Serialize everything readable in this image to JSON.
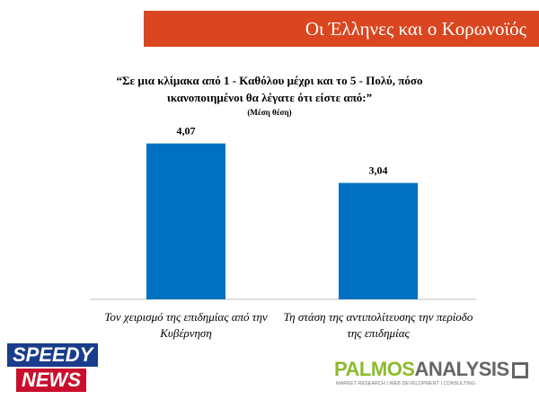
{
  "header": {
    "title": "Οι Έλληνες και ο Κορωνοϊός"
  },
  "chart_data": {
    "type": "bar",
    "title": "“Σε μια κλίμακα από 1 - Καθόλου μέχρι και το 5 - Πολύ, πόσο ικανοποιημένοι θα λέγατε ότι είστε από:”",
    "subtitle": "(Μέση θέση)",
    "categories": [
      "Τον χειρισμό της επιδημίας από την Κυβέρνηση",
      "Τη στάση της αντιπολίτευσης την περίοδο της επιδημίας"
    ],
    "values": [
      4.07,
      3.04
    ],
    "value_labels": [
      "4,07",
      "3,04"
    ],
    "color": "#0070c0",
    "ylim": [
      0,
      5
    ]
  },
  "logos": {
    "left_top": "SPEEDY",
    "left_bottom": "NEWS",
    "right_a": "PALMOS",
    "right_b": "ANALYSIS",
    "right_tagline": "MARKET RESEARCH | WEB DEVELOPMENT | CONSULTING"
  }
}
